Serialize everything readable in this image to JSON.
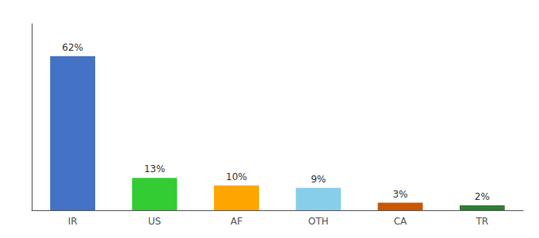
{
  "chart_data": {
    "type": "bar",
    "categories": [
      "IR",
      "US",
      "AF",
      "OTH",
      "CA",
      "TR"
    ],
    "values": [
      62,
      13,
      10,
      9,
      3,
      2
    ],
    "value_labels": [
      "62%",
      "13%",
      "10%",
      "9%",
      "3%",
      "2%"
    ],
    "colors": [
      "#4472C4",
      "#33CC33",
      "#FFA500",
      "#87CEEB",
      "#CC5500",
      "#2E7D32"
    ],
    "ylim": [
      0,
      75
    ],
    "grid": false,
    "data_labels": true,
    "tick_labels": "x"
  }
}
